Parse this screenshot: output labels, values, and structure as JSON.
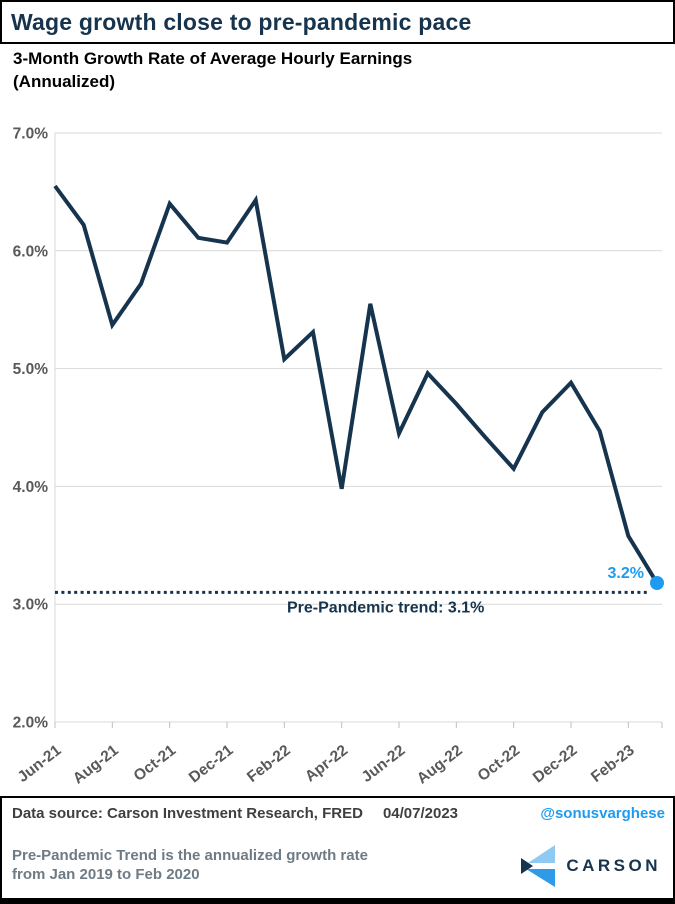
{
  "header": {
    "title": "Wage growth close to pre-pandemic pace"
  },
  "subtitle": {
    "line1": "3-Month Growth Rate of Average Hourly Earnings",
    "line2": "(Annualized)"
  },
  "chart_data": {
    "type": "line",
    "title": "3-Month Growth Rate of Average Hourly Earnings (Annualized)",
    "x": [
      "Jun-21",
      "Jul-21",
      "Aug-21",
      "Sep-21",
      "Oct-21",
      "Nov-21",
      "Dec-21",
      "Jan-22",
      "Feb-22",
      "Mar-22",
      "Apr-22",
      "May-22",
      "Jun-22",
      "Jul-22",
      "Aug-22",
      "Sep-22",
      "Oct-22",
      "Nov-22",
      "Dec-22",
      "Jan-23",
      "Feb-23",
      "Mar-23"
    ],
    "values": [
      6.55,
      6.22,
      5.37,
      5.72,
      6.4,
      6.11,
      6.07,
      6.43,
      5.08,
      5.31,
      3.98,
      5.55,
      4.45,
      4.96,
      4.7,
      4.42,
      4.15,
      4.63,
      4.88,
      4.47,
      3.58,
      3.18
    ],
    "x_tick_labels": [
      "Jun-21",
      "Aug-21",
      "Oct-21",
      "Dec-21",
      "Feb-22",
      "Apr-22",
      "Jun-22",
      "Aug-22",
      "Oct-22",
      "Dec-22",
      "Feb-23"
    ],
    "y_tick_labels": [
      "7.0%",
      "6.0%",
      "5.0%",
      "4.0%",
      "3.0%",
      "2.0%"
    ],
    "ylim": [
      2.0,
      7.0
    ],
    "grid": true,
    "legend": "none",
    "line_color": "#16344E",
    "grid_color": "#D9D9D9",
    "axis_label_color": "#595959",
    "trend": {
      "value": 3.1,
      "label": "Pre-Pandemic trend: 3.1%",
      "color": "#16344E"
    },
    "end_label": {
      "text": "3.2%",
      "color": "#1E9BF0"
    }
  },
  "footer": {
    "data_source": "Data source: Carson Investment Research, FRED",
    "date": "04/07/2023",
    "handle": "@sonusvarghese",
    "disclaimer_line1": "Pre-Pandemic Trend is the annualized growth rate",
    "disclaimer_line2": "from Jan 2019 to Feb 2020",
    "brand": "CARSON",
    "brand_colors": {
      "light": "#8FCAF3",
      "mid": "#2E9BE8",
      "dark": "#16344E"
    }
  }
}
